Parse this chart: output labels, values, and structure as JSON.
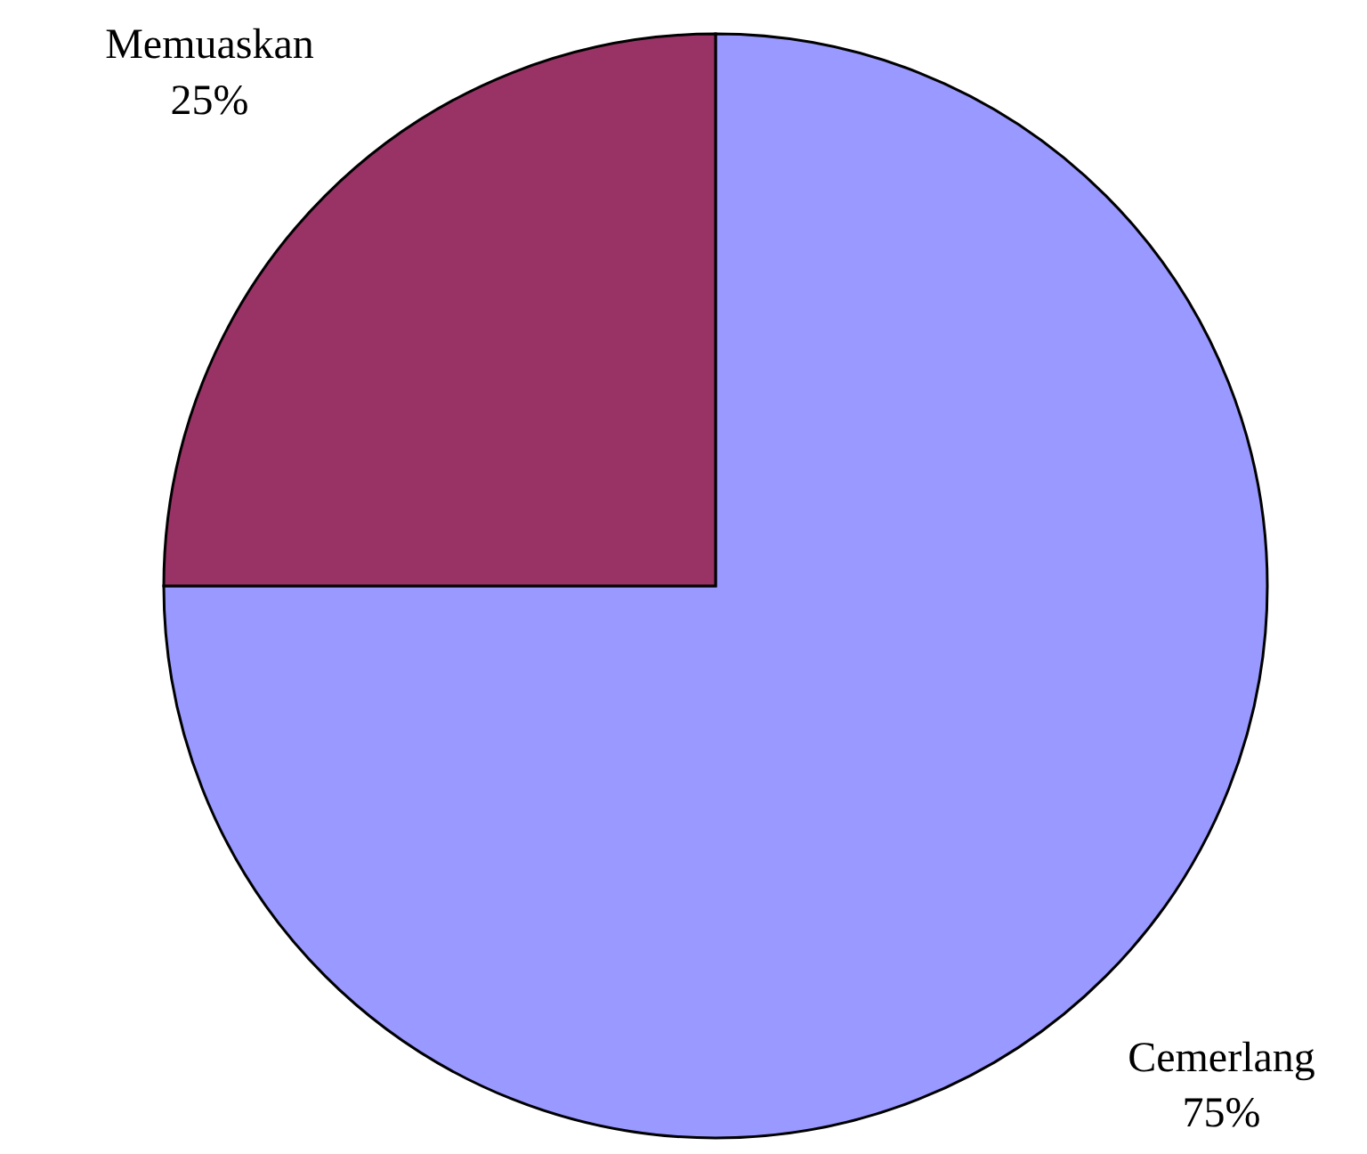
{
  "chart_data": {
    "type": "pie",
    "categories": [
      "Cemerlang",
      "Memuaskan"
    ],
    "values": [
      75,
      25
    ],
    "colors": [
      "#9999ff",
      "#993366"
    ],
    "value_labels": [
      "75%",
      "25%"
    ]
  }
}
